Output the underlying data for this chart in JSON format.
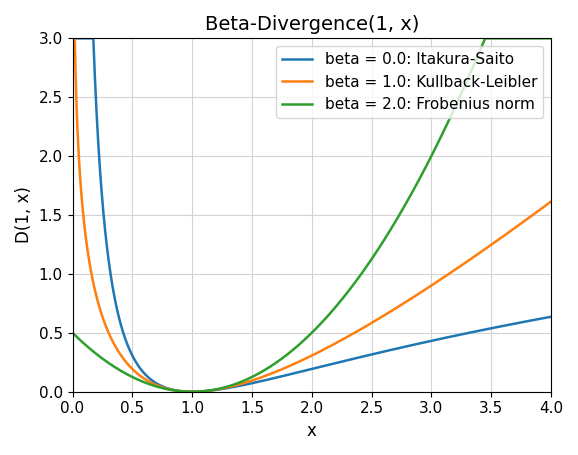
{
  "title": "Beta-Divergence(1, x)",
  "xlabel": "x",
  "ylabel": "D(1, x)",
  "xlim": [
    0.0,
    4.0
  ],
  "ylim": [
    0.0,
    3.0
  ],
  "x_start": 0.005,
  "x_end": 4.0,
  "n_points": 2000,
  "betas": [
    0.0,
    1.0,
    2.0
  ],
  "beta_labels": [
    "beta = 0.0: Itakura-Saito",
    "beta = 1.0: Kullback-Leibler",
    "beta = 2.0: Frobenius norm"
  ],
  "colors": [
    "#1f77b4",
    "#ff7f0e",
    "#2ca02c"
  ],
  "linewidth": 1.8,
  "grid": true,
  "legend_loc": "upper right",
  "title_fontsize": 14,
  "label_fontsize": 12,
  "tick_fontsize": 11,
  "legend_fontsize": 11,
  "figsize": [
    5.78,
    4.55
  ],
  "dpi": 100
}
